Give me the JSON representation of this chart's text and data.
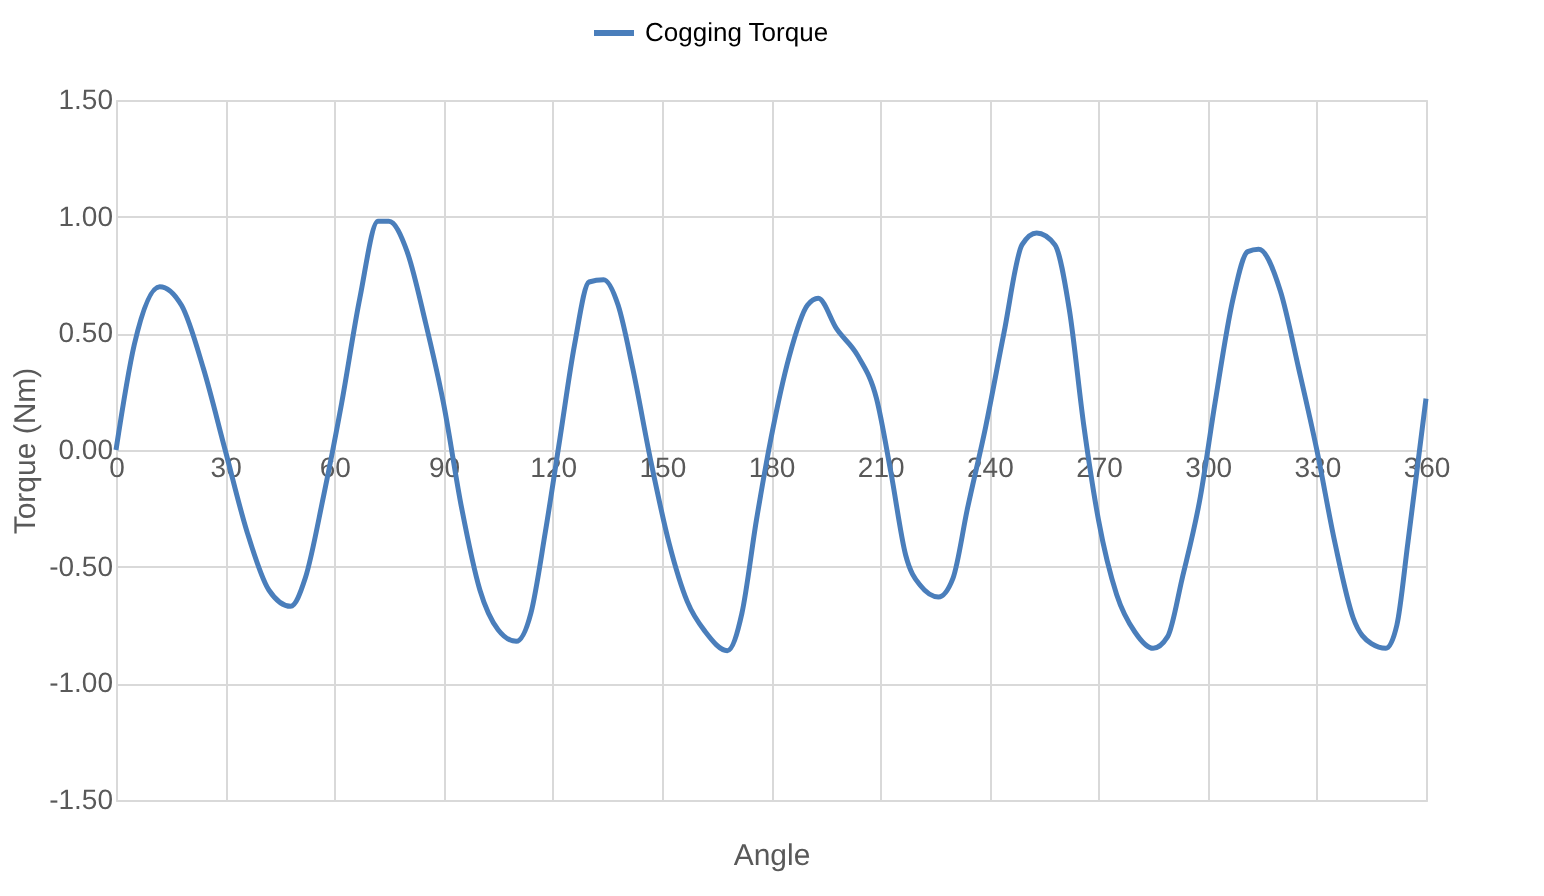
{
  "chart_data": {
    "type": "line",
    "xlabel": "Angle",
    "ylabel": "Torque (Nm)",
    "xlim": [
      0,
      360
    ],
    "xticks": [
      0,
      30,
      60,
      90,
      120,
      150,
      180,
      210,
      240,
      270,
      300,
      330,
      360
    ],
    "ylim": [
      -1.5,
      1.5
    ],
    "yticks": [
      {
        "value": -1.5,
        "label": "-1.50"
      },
      {
        "value": -1.0,
        "label": "-1.00"
      },
      {
        "value": -0.5,
        "label": "-0.50"
      },
      {
        "value": 0,
        "label": "0.00"
      },
      {
        "value": 0.5,
        "label": "0.50"
      },
      {
        "value": 1.0,
        "label": "1.00"
      },
      {
        "value": 1.5,
        "label": "1.50"
      }
    ],
    "grid": true,
    "legend": "top",
    "line_style": "solid",
    "marker": "none",
    "x": [
      0,
      5,
      12,
      18,
      24,
      30,
      36,
      42,
      48,
      52,
      57,
      62,
      67,
      72,
      75,
      80,
      85,
      90,
      95,
      100,
      105,
      110,
      114,
      118,
      122,
      126,
      130,
      134,
      138,
      142,
      147,
      152,
      157,
      162,
      168,
      172,
      176,
      180,
      185,
      190,
      193,
      198,
      204,
      209,
      213,
      217,
      221,
      226,
      230,
      234,
      239,
      244,
      249,
      253,
      258,
      262,
      266,
      270,
      275,
      280,
      285,
      289,
      293,
      298,
      302,
      307,
      311,
      314,
      320,
      325,
      330,
      335,
      340,
      345,
      349,
      352,
      355,
      360
    ],
    "series": [
      {
        "name": "Cogging Torque",
        "color": "#4a7ebb",
        "values": [
          0,
          0.45,
          0.7,
          0.62,
          0.35,
          0.0,
          -0.35,
          -0.6,
          -0.67,
          -0.55,
          -0.2,
          0.2,
          0.65,
          0.98,
          0.98,
          0.85,
          0.55,
          0.2,
          -0.25,
          -0.6,
          -0.77,
          -0.82,
          -0.7,
          -0.35,
          0.05,
          0.45,
          0.72,
          0.73,
          0.62,
          0.35,
          -0.05,
          -0.4,
          -0.65,
          -0.78,
          -0.86,
          -0.7,
          -0.3,
          0.05,
          0.4,
          0.62,
          0.65,
          0.52,
          0.4,
          0.22,
          -0.1,
          -0.45,
          -0.58,
          -0.63,
          -0.55,
          -0.25,
          0.1,
          0.5,
          0.88,
          0.93,
          0.88,
          0.6,
          0.1,
          -0.3,
          -0.62,
          -0.78,
          -0.85,
          -0.8,
          -0.55,
          -0.2,
          0.2,
          0.65,
          0.85,
          0.86,
          0.68,
          0.35,
          0.0,
          -0.4,
          -0.72,
          -0.83,
          -0.85,
          -0.75,
          -0.4,
          0.22
        ]
      }
    ]
  }
}
